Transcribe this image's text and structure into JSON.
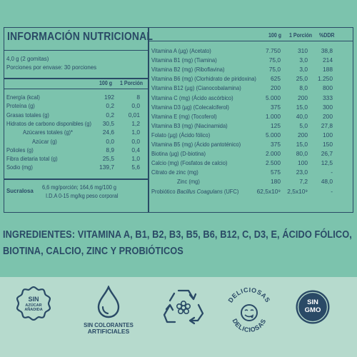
{
  "title": "INFORMACIÓN NUTRICIONAL",
  "serving": "4,0 g (2 gomitas)",
  "servings_per_container": "Porciones por envase: 30 porciones",
  "left_headers": [
    "100 g",
    "1 Porción"
  ],
  "left_rows": [
    {
      "label": "Energía (kcal)",
      "v100": "192",
      "vpor": "8",
      "indent": 0
    },
    {
      "label": "Proteína (g)",
      "v100": "0,2",
      "vpor": "0,0",
      "indent": 0
    },
    {
      "label": "Grasas totales (g)",
      "v100": "0,2",
      "vpor": "0,01",
      "indent": 0
    },
    {
      "label": "Hidratos de carbono disponibles (g)",
      "v100": "30,5",
      "vpor": "1,2",
      "indent": 0
    },
    {
      "label": "Azúcares totales (g)*",
      "v100": "24,6",
      "vpor": "1,0",
      "indent": 1
    },
    {
      "label": "Azúcar (g)",
      "v100": "0,0",
      "vpor": "0,0",
      "indent": 2
    },
    {
      "label": "Polioles (g)",
      "v100": "8,9",
      "vpor": "0,4",
      "indent": 0
    },
    {
      "label": "Fibra dietaria total (g)",
      "v100": "25,5",
      "vpor": "1,0",
      "indent": 0
    },
    {
      "label": "Sodio (mg)",
      "v100": "139,7",
      "vpor": "5,6",
      "indent": 0
    }
  ],
  "sucralosa": {
    "label": "Sucralosa",
    "line1": "6,6 mg/porción; 164,6 mg/100 g",
    "line2": "I.D.A 0-15 mg/kg peso corporal"
  },
  "right_headers": [
    "100 g",
    "1 Porción",
    "%DDR"
  ],
  "right_rows": [
    {
      "label": "Vitamina A (µg) (Acetato)",
      "v100": "7.750",
      "vpor": "310",
      "ddr": "38,8"
    },
    {
      "label": "Vitamina B1 (mg) (Tiamina)",
      "v100": "75,0",
      "vpor": "3,0",
      "ddr": "214"
    },
    {
      "label": "Vitamina B2 (mg) (Riboflavina)",
      "v100": "75,0",
      "vpor": "3,0",
      "ddr": "188"
    },
    {
      "label": "Vitamina B6 (mg) (Clorhidrato de piridoxina)",
      "v100": "625",
      "vpor": "25,0",
      "ddr": "1.250"
    },
    {
      "label": "Vitamina B12 (µg) (Cianocobalamina)",
      "v100": "200",
      "vpor": "8,0",
      "ddr": "800"
    },
    {
      "label": "Vitamina C (mg) (Ácido ascórbico)",
      "v100": "5.000",
      "vpor": "200",
      "ddr": "333"
    },
    {
      "label": "Vitamina D3 (µg) (Colecalciferol)",
      "v100": "375",
      "vpor": "15,0",
      "ddr": "300"
    },
    {
      "label": "Vitamina E (mg) (Tocoferol)",
      "v100": "1.000",
      "vpor": "40,0",
      "ddr": "200"
    },
    {
      "label": "Vitamina B3 (mg) (Niacinamida)",
      "v100": "125",
      "vpor": "5,0",
      "ddr": "27,8"
    },
    {
      "label": "Folato (µg) (Ácido fólico)",
      "v100": "5.000",
      "vpor": "200",
      "ddr": "100"
    },
    {
      "label": "Vitamina B5 (mg) (Ácido pantoténico)",
      "v100": "375",
      "vpor": "15,0",
      "ddr": "150"
    },
    {
      "label": "Biotina (µg) (D-biotina)",
      "v100": "2.000",
      "vpor": "80,0",
      "ddr": "26,7"
    },
    {
      "label": "Calcio (mg) (Fosfatos de calcio)",
      "v100": "2.500",
      "vpor": "100",
      "ddr": "12,5"
    },
    {
      "label": "Citrato de zinc (mg)",
      "v100": "575",
      "vpor": "23,0",
      "ddr": "-"
    },
    {
      "label": "Zinc (mg)",
      "v100": "180",
      "vpor": "7,2",
      "ddr": "48,0",
      "indent": 1
    },
    {
      "label": "Probiótico Bacillus Coagulans (UFC)",
      "v100": "62,5x10⁹",
      "vpor": "2,5x10⁹",
      "ddr": "-"
    }
  ],
  "ingredients_line1": "INGREDIENTES: VITAMINA A, B1, B2, B3, B5, B6, B12, C, D3, E, ÁCIDO FÓLICO,",
  "ingredients_line2": "BIOTINA, CALCIO, ZINC Y PROBIÓTICOS",
  "badges": {
    "sin_azucar_l1": "SIN",
    "sin_azucar_l2": "AZÚCAR",
    "sin_azucar_l3": "AÑADIDA",
    "colorantes_l1": "SIN COLORANTES",
    "colorantes_l2": "ARTIFICIALES",
    "deliciosas_top": "DELICIOSAS",
    "deliciosas_bottom": "DELICIOSAS",
    "gmo_l1": "SIN",
    "gmo_l2": "GMO"
  },
  "colors": {
    "bg": "#7cc3ad",
    "ink": "#2a4a66",
    "band": "#b6dacd"
  }
}
